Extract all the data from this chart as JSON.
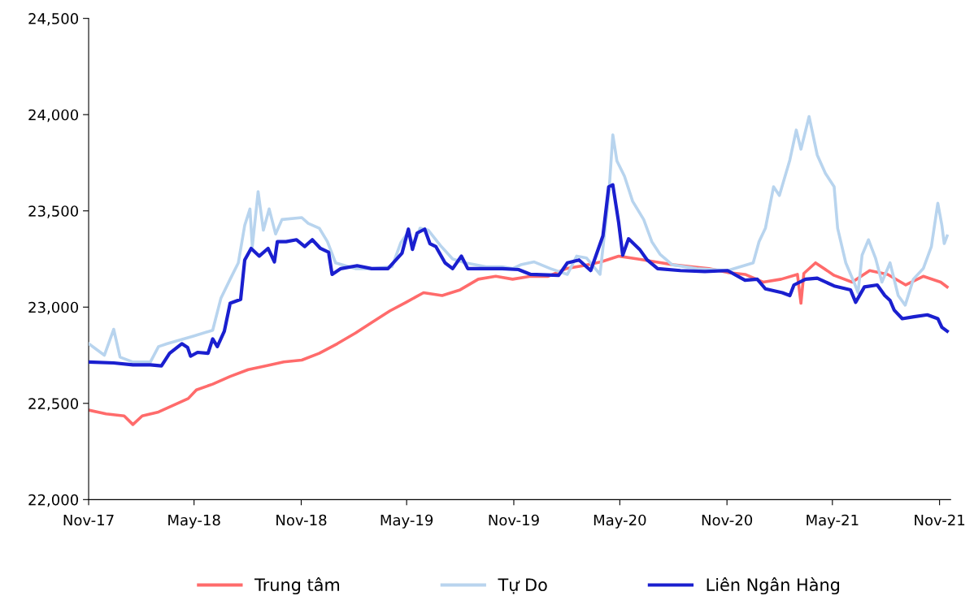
{
  "chart_data": {
    "type": "line",
    "legend": "bottom",
    "grid": false,
    "line_style": "solid",
    "marker": "none",
    "xlim": [
      "2017-11-01",
      "2021-11-20"
    ],
    "xticks": [
      {
        "value": "2017-11-01",
        "label": "Nov-17"
      },
      {
        "value": "2018-05-01",
        "label": "May-18"
      },
      {
        "value": "2018-11-01",
        "label": "Nov-18"
      },
      {
        "value": "2019-05-01",
        "label": "May-19"
      },
      {
        "value": "2019-11-01",
        "label": "Nov-19"
      },
      {
        "value": "2020-05-01",
        "label": "May-20"
      },
      {
        "value": "2020-11-01",
        "label": "Nov-20"
      },
      {
        "value": "2021-05-01",
        "label": "May-21"
      },
      {
        "value": "2021-11-01",
        "label": "Nov-21"
      }
    ],
    "ylim": [
      22000,
      24500
    ],
    "yticks": [
      {
        "value": 22000,
        "label": "22,000"
      },
      {
        "value": 22500,
        "label": "22,500"
      },
      {
        "value": 23000,
        "label": "23,000"
      },
      {
        "value": 23500,
        "label": "23,500"
      },
      {
        "value": 24000,
        "label": "24,000"
      },
      {
        "value": 24500,
        "label": "24,500"
      }
    ],
    "series": [
      {
        "name": "Trung tâm",
        "color": "#ff6b6b",
        "x": [
          "2017-11-01",
          "2017-12-01",
          "2018-01-01",
          "2018-01-16",
          "2018-02-01",
          "2018-03-01",
          "2018-04-21",
          "2018-05-05",
          "2018-06-02",
          "2018-07-02",
          "2018-08-02",
          "2018-09-02",
          "2018-10-02",
          "2018-11-02",
          "2018-12-02",
          "2019-01-02",
          "2019-02-02",
          "2019-03-02",
          "2019-04-02",
          "2019-04-30",
          "2019-05-30",
          "2019-07-01",
          "2019-08-01",
          "2019-09-01",
          "2019-10-01",
          "2019-10-30",
          "2019-11-30",
          "2019-12-30",
          "2020-01-30",
          "2020-02-28",
          "2020-03-30",
          "2020-04-29",
          "2020-06-01",
          "2020-07-01",
          "2020-08-01",
          "2020-09-01",
          "2020-10-01",
          "2020-11-02",
          "2020-12-02",
          "2021-01-02",
          "2021-02-02",
          "2021-03-02",
          "2021-03-08",
          "2021-03-13",
          "2021-04-02",
          "2021-05-04",
          "2021-06-04",
          "2021-07-04",
          "2021-08-04",
          "2021-09-04",
          "2021-10-04",
          "2021-11-03",
          "2021-11-14"
        ],
        "values": [
          22465,
          22445,
          22435,
          22390,
          22435,
          22455,
          22525,
          22570,
          22600,
          22640,
          22675,
          22695,
          22715,
          22725,
          22760,
          22810,
          22865,
          22920,
          22980,
          23025,
          23075,
          23060,
          23090,
          23145,
          23160,
          23145,
          23160,
          23160,
          23200,
          23215,
          23235,
          23265,
          23250,
          23235,
          23220,
          23210,
          23200,
          23180,
          23170,
          23130,
          23145,
          23170,
          23020,
          23175,
          23230,
          23165,
          23130,
          23190,
          23170,
          23115,
          23160,
          23130,
          23105
        ]
      },
      {
        "name": "Tự Do",
        "color": "#b8d4ee",
        "x": [
          "2017-11-01",
          "2017-11-28",
          "2017-12-14",
          "2017-12-25",
          "2018-01-16",
          "2018-02-15",
          "2018-03-01",
          "2018-03-16",
          "2018-05-01",
          "2018-06-02",
          "2018-06-16",
          "2018-07-02",
          "2018-07-16",
          "2018-07-27",
          "2018-08-05",
          "2018-08-09",
          "2018-08-19",
          "2018-08-28",
          "2018-09-07",
          "2018-09-18",
          "2018-09-29",
          "2018-11-02",
          "2018-11-13",
          "2018-12-02",
          "2018-12-16",
          "2018-12-30",
          "2019-02-02",
          "2019-03-02",
          "2019-04-06",
          "2019-04-21",
          "2019-05-04",
          "2019-05-13",
          "2019-05-24",
          "2019-06-07",
          "2019-06-28",
          "2019-07-19",
          "2019-08-10",
          "2019-09-14",
          "2019-10-12",
          "2019-10-30",
          "2019-11-13",
          "2019-12-06",
          "2020-01-03",
          "2020-02-01",
          "2020-02-17",
          "2020-03-05",
          "2020-03-28",
          "2020-04-12",
          "2020-04-19",
          "2020-04-26",
          "2020-05-09",
          "2020-05-23",
          "2020-06-11",
          "2020-06-25",
          "2020-07-09",
          "2020-07-30",
          "2020-09-10",
          "2020-11-02",
          "2020-12-16",
          "2020-12-26",
          "2021-01-06",
          "2021-01-20",
          "2021-01-30",
          "2021-02-17",
          "2021-02-28",
          "2021-03-08",
          "2021-03-22",
          "2021-04-05",
          "2021-04-19",
          "2021-05-04",
          "2021-05-10",
          "2021-05-24",
          "2021-06-07",
          "2021-06-14",
          "2021-06-21",
          "2021-07-02",
          "2021-07-14",
          "2021-07-25",
          "2021-08-08",
          "2021-08-22",
          "2021-09-03",
          "2021-09-17",
          "2021-10-04",
          "2021-10-18",
          "2021-10-29",
          "2021-11-05",
          "2021-11-09",
          "2021-11-14"
        ],
        "values": [
          22810,
          22750,
          22885,
          22740,
          22715,
          22715,
          22795,
          22810,
          22850,
          22880,
          23045,
          23145,
          23230,
          23425,
          23510,
          23315,
          23600,
          23400,
          23510,
          23380,
          23455,
          23465,
          23435,
          23410,
          23340,
          23230,
          23200,
          23200,
          23210,
          23335,
          23390,
          23320,
          23410,
          23400,
          23320,
          23250,
          23230,
          23210,
          23210,
          23200,
          23220,
          23235,
          23200,
          23170,
          23265,
          23255,
          23170,
          23580,
          23895,
          23760,
          23680,
          23550,
          23455,
          23340,
          23275,
          23220,
          23200,
          23190,
          23230,
          23340,
          23410,
          23625,
          23580,
          23765,
          23920,
          23820,
          23990,
          23790,
          23695,
          23625,
          23410,
          23230,
          23130,
          23075,
          23270,
          23350,
          23255,
          23130,
          23230,
          23060,
          23010,
          23145,
          23200,
          23315,
          23540,
          23425,
          23330,
          23370
        ]
      },
      {
        "name": "Liên Ngân Hàng",
        "color": "#1a1fcf",
        "x": [
          "2017-11-01",
          "2017-12-14",
          "2018-01-16",
          "2018-02-15",
          "2018-03-06",
          "2018-03-20",
          "2018-04-10",
          "2018-04-20",
          "2018-04-25",
          "2018-05-07",
          "2018-05-25",
          "2018-06-02",
          "2018-06-10",
          "2018-06-22",
          "2018-07-02",
          "2018-07-20",
          "2018-07-27",
          "2018-08-07",
          "2018-08-21",
          "2018-09-05",
          "2018-09-16",
          "2018-09-21",
          "2018-10-06",
          "2018-10-24",
          "2018-11-07",
          "2018-11-20",
          "2018-12-04",
          "2018-12-18",
          "2018-12-24",
          "2019-01-08",
          "2019-02-05",
          "2019-03-02",
          "2019-03-30",
          "2019-04-23",
          "2019-05-04",
          "2019-05-11",
          "2019-05-19",
          "2019-06-01",
          "2019-06-10",
          "2019-06-20",
          "2019-07-06",
          "2019-07-19",
          "2019-08-03",
          "2019-08-14",
          "2019-09-14",
          "2019-10-12",
          "2019-11-09",
          "2019-11-30",
          "2020-01-17",
          "2020-02-01",
          "2020-02-21",
          "2020-03-12",
          "2020-04-02",
          "2020-04-12",
          "2020-04-19",
          "2020-04-29",
          "2020-05-06",
          "2020-05-16",
          "2020-06-04",
          "2020-06-17",
          "2020-07-05",
          "2020-08-13",
          "2020-09-24",
          "2020-11-02",
          "2020-12-02",
          "2020-12-23",
          "2021-01-06",
          "2021-02-04",
          "2021-02-17",
          "2021-02-24",
          "2021-03-16",
          "2021-04-05",
          "2021-05-04",
          "2021-06-01",
          "2021-06-10",
          "2021-06-25",
          "2021-07-17",
          "2021-07-30",
          "2021-08-08",
          "2021-08-15",
          "2021-08-29",
          "2021-09-18",
          "2021-10-11",
          "2021-10-29",
          "2021-11-05",
          "2021-11-14"
        ],
        "values": [
          22715,
          22710,
          22700,
          22700,
          22695,
          22760,
          22810,
          22790,
          22745,
          22765,
          22760,
          22835,
          22795,
          22875,
          23020,
          23040,
          23245,
          23305,
          23265,
          23305,
          23235,
          23340,
          23340,
          23350,
          23315,
          23350,
          23305,
          23285,
          23170,
          23200,
          23215,
          23200,
          23200,
          23280,
          23405,
          23300,
          23385,
          23405,
          23330,
          23315,
          23230,
          23200,
          23265,
          23200,
          23200,
          23200,
          23195,
          23170,
          23165,
          23230,
          23245,
          23190,
          23370,
          23625,
          23635,
          23440,
          23270,
          23355,
          23300,
          23245,
          23200,
          23190,
          23185,
          23190,
          23140,
          23145,
          23095,
          23075,
          23060,
          23115,
          23145,
          23150,
          23110,
          23090,
          23025,
          23105,
          23115,
          23060,
          23035,
          22985,
          22940,
          22950,
          22960,
          22940,
          22895,
          22875
        ]
      }
    ]
  }
}
